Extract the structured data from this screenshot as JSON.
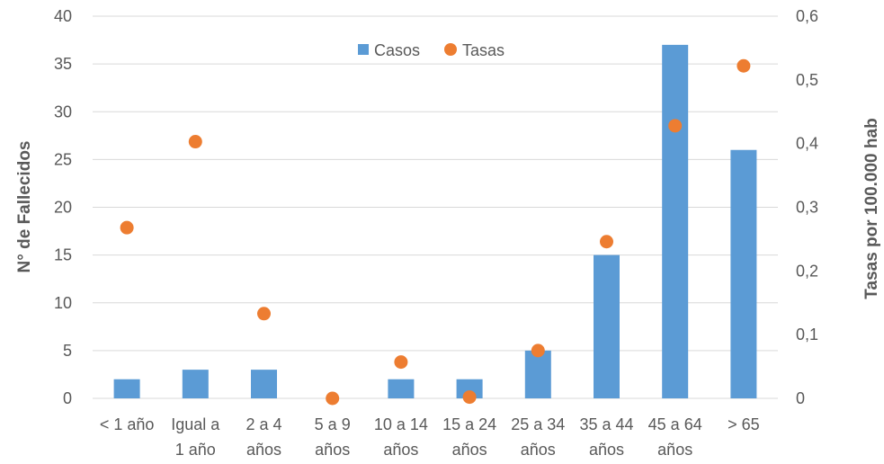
{
  "chart_data": {
    "type": "bar",
    "categories": [
      [
        "< 1 año"
      ],
      [
        "Igual a",
        "1 año"
      ],
      [
        "2 a 4",
        "años"
      ],
      [
        "5 a 9",
        "años"
      ],
      [
        "10 a 14",
        "años"
      ],
      [
        "15 a 24",
        "años"
      ],
      [
        "25 a 34",
        "años"
      ],
      [
        "35 a 44",
        "años"
      ],
      [
        "45 a 64",
        "años"
      ],
      [
        "> 65"
      ]
    ],
    "series": [
      {
        "name": "Casos",
        "type": "bar",
        "axis": "left",
        "color": "#5b9bd5",
        "values": [
          2,
          3,
          3,
          0,
          2,
          2,
          5,
          15,
          37,
          26
        ]
      },
      {
        "name": "Tasas",
        "type": "scatter",
        "axis": "right",
        "color": "#ed7d31",
        "values": [
          0.268,
          0.403,
          0.133,
          0.0,
          0.057,
          0.002,
          0.075,
          0.246,
          0.428,
          0.522
        ]
      }
    ],
    "ylabel": "N° de Fallecidos",
    "y2label": "Tasas por 100.000 hab",
    "ylim": [
      0,
      40
    ],
    "y2lim": [
      0,
      0.6
    ],
    "yticks": [
      "0",
      "5",
      "10",
      "15",
      "20",
      "25",
      "30",
      "35",
      "40"
    ],
    "y2ticks": [
      "0",
      "0,1",
      "0,2",
      "0,3",
      "0,4",
      "0,5",
      "0,6"
    ],
    "grid": true,
    "legend_position": "top-center"
  }
}
